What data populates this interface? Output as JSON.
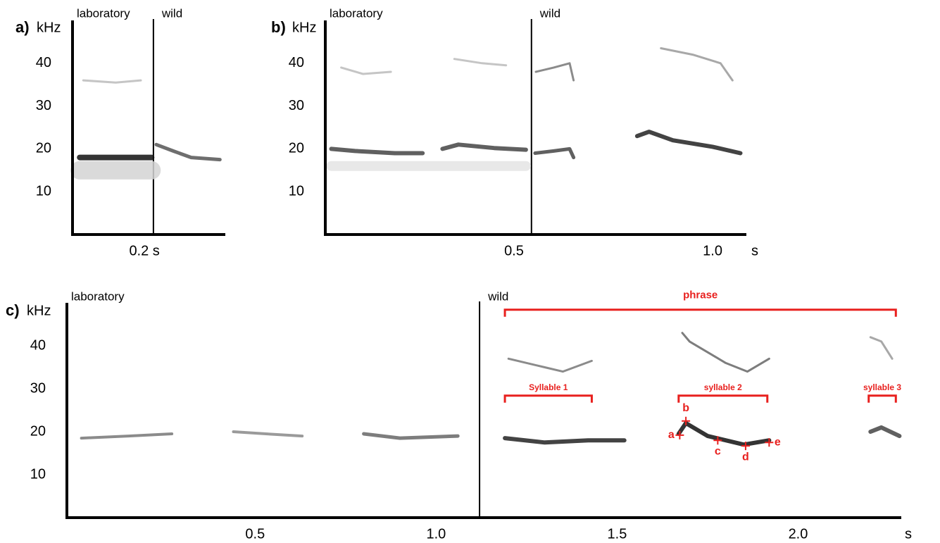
{
  "chart_data": [
    {
      "type": "spectrogram",
      "panel_label": "a)",
      "y_unit": "kHz",
      "left_label": "laboratory",
      "right_label": "wild",
      "xlim": [
        0,
        0.425
      ],
      "xticks": [
        {
          "value": 0.2,
          "label": "0.2 s"
        }
      ],
      "ylim": [
        0,
        50
      ],
      "yticks": [
        10,
        20,
        30,
        40
      ],
      "divider_x": 0.225,
      "contours": [
        {
          "x": [
            0.02,
            0.22
          ],
          "values": [
            15,
            15
          ],
          "color": "#d4d4d4",
          "width": 26
        },
        {
          "x": [
            0.02,
            0.1,
            0.22
          ],
          "values": [
            18,
            18,
            18
          ],
          "color": "#111111",
          "width": 8
        },
        {
          "x": [
            0.03,
            0.12,
            0.19
          ],
          "values": [
            36,
            35.5,
            36
          ],
          "color": "#bbbbbb",
          "width": 3
        },
        {
          "x": [
            0.233,
            0.28,
            0.33,
            0.41
          ],
          "values": [
            21,
            19.5,
            18,
            17.5
          ],
          "color": "#555555",
          "width": 5
        }
      ]
    },
    {
      "type": "spectrogram",
      "panel_label": "b)",
      "y_unit": "kHz",
      "left_label": "laboratory",
      "right_label": "wild",
      "x_unit": "s",
      "xlim": [
        0.025,
        1.085
      ],
      "xticks": [
        0.5,
        {
          "value": 1.0,
          "label": "1.0"
        }
      ],
      "ylim": [
        0,
        50
      ],
      "yticks": [
        10,
        20,
        30,
        40
      ],
      "divider_x": 0.544,
      "contours": [
        {
          "x": [
            0.04,
            0.53
          ],
          "values": [
            16,
            16
          ],
          "color": "#e4e4e4",
          "width": 14
        },
        {
          "x": [
            0.04,
            0.1,
            0.2,
            0.27
          ],
          "values": [
            20,
            19.5,
            19,
            19
          ],
          "color": "#444444",
          "width": 6
        },
        {
          "x": [
            0.32,
            0.36,
            0.45,
            0.53
          ],
          "values": [
            20,
            21,
            20.2,
            19.8
          ],
          "color": "#444444",
          "width": 6
        },
        {
          "x": [
            0.065,
            0.12,
            0.19
          ],
          "values": [
            39,
            37.5,
            38
          ],
          "color": "#bbbbbb",
          "width": 3
        },
        {
          "x": [
            0.35,
            0.42,
            0.48
          ],
          "values": [
            41,
            40,
            39.5
          ],
          "color": "#bbbbbb",
          "width": 3
        },
        {
          "x": [
            0.553,
            0.6,
            0.64,
            0.65
          ],
          "values": [
            19,
            19.5,
            20,
            18
          ],
          "color": "#444444",
          "width": 5
        },
        {
          "x": [
            0.555,
            0.6,
            0.64,
            0.65
          ],
          "values": [
            38,
            39,
            40,
            36
          ],
          "color": "#777777",
          "width": 3
        },
        {
          "x": [
            0.81,
            0.84,
            0.9,
            1.0,
            1.07
          ],
          "values": [
            23,
            24,
            22,
            20.5,
            19
          ],
          "color": "#222222",
          "width": 6
        },
        {
          "x": [
            0.87,
            0.95,
            1.02,
            1.05
          ],
          "values": [
            43.5,
            42,
            40,
            36
          ],
          "color": "#999999",
          "width": 3
        }
      ]
    },
    {
      "type": "spectrogram",
      "panel_label": "c)",
      "y_unit": "kHz",
      "left_label": "laboratory",
      "right_label": "wild",
      "x_unit": "s",
      "xlim": [
        -0.02,
        2.285
      ],
      "xticks": [
        0.5,
        {
          "value": 1.0,
          "label": "1.0"
        },
        1.5,
        {
          "value": 2.0,
          "label": "2.0"
        }
      ],
      "ylim": [
        0,
        50
      ],
      "yticks": [
        10,
        20,
        30,
        40
      ],
      "divider_x": 1.12,
      "contours": [
        {
          "x": [
            0.02,
            0.15,
            0.27
          ],
          "values": [
            18.5,
            19,
            19.5
          ],
          "color": "#777777",
          "width": 4
        },
        {
          "x": [
            0.44,
            0.53,
            0.63
          ],
          "values": [
            20,
            19.5,
            19
          ],
          "color": "#888888",
          "width": 4
        },
        {
          "x": [
            0.8,
            0.9,
            1.06
          ],
          "values": [
            19.5,
            18.5,
            19
          ],
          "color": "#666666",
          "width": 5
        },
        {
          "x": [
            1.19,
            1.3,
            1.42,
            1.52
          ],
          "values": [
            18.5,
            17.5,
            18,
            18
          ],
          "color": "#222222",
          "width": 6
        },
        {
          "x": [
            1.2,
            1.3,
            1.35,
            1.43
          ],
          "values": [
            37,
            35,
            34,
            36.5
          ],
          "color": "#777777",
          "width": 3
        },
        {
          "x": [
            1.67,
            1.69,
            1.75,
            1.85,
            1.92
          ],
          "values": [
            19.5,
            22,
            19,
            17,
            18
          ],
          "color": "#111111",
          "width": 6
        },
        {
          "x": [
            1.68,
            1.7,
            1.8,
            1.86,
            1.92
          ],
          "values": [
            43,
            41,
            36,
            34,
            37
          ],
          "color": "#666666",
          "width": 3
        },
        {
          "x": [
            2.2,
            2.23,
            2.28
          ],
          "values": [
            20,
            21,
            19
          ],
          "color": "#444444",
          "width": 6
        },
        {
          "x": [
            2.2,
            2.23,
            2.26
          ],
          "values": [
            42,
            41,
            37
          ],
          "color": "#999999",
          "width": 3
        }
      ],
      "annotation_color": "#e8201e",
      "brackets": [
        {
          "label": "phrase",
          "x": [
            1.19,
            2.27
          ],
          "y": 48.4
        },
        {
          "label": "Syllable 1",
          "x": [
            1.19,
            1.43
          ],
          "y": 28.4
        },
        {
          "label": "syllable 2",
          "x": [
            1.67,
            1.915
          ],
          "y": 28.4
        },
        {
          "label": "syllable 3",
          "x": [
            2.195,
            2.27
          ],
          "y": 28.4
        }
      ],
      "points": [
        {
          "label": "a",
          "x": 1.673,
          "y": 19.2
        },
        {
          "label": "b",
          "x": 1.69,
          "y": 22.5
        },
        {
          "label": "c",
          "x": 1.778,
          "y": 18
        },
        {
          "label": "d",
          "x": 1.855,
          "y": 16.7
        },
        {
          "label": "e",
          "x": 1.92,
          "y": 17.5
        }
      ]
    }
  ]
}
